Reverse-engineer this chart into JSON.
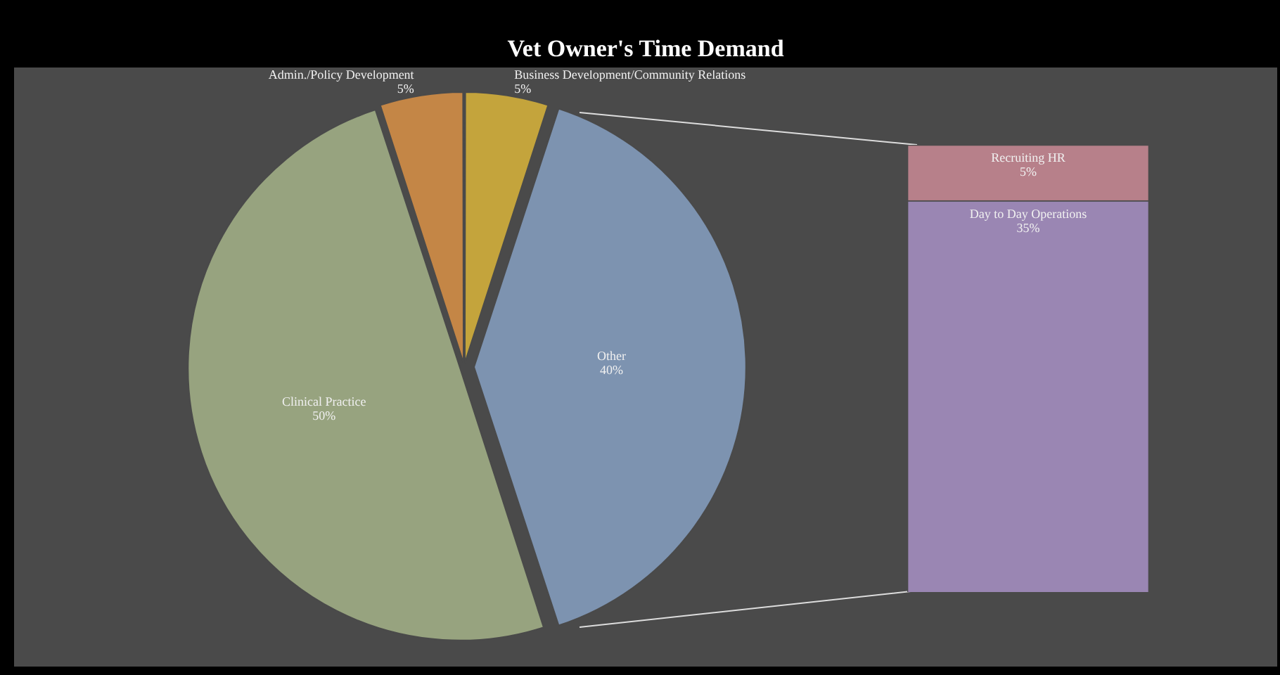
{
  "chart_data": [
    {
      "type": "pie",
      "title": "Vet Owner's Time Demand",
      "categories": [
        "Business Development/Community Relations",
        "Other",
        "Clinical Practice",
        "Admin./Policy Development"
      ],
      "values": [
        5,
        40,
        50,
        5
      ],
      "colors": [
        "#c4a43c",
        "#7d93b0",
        "#97a37f",
        "#c48646"
      ],
      "value_labels": [
        "5%",
        "40%",
        "50%",
        "5%"
      ],
      "legend": false
    },
    {
      "type": "bar",
      "stacked": true,
      "categories": [
        null
      ],
      "series": [
        {
          "name": "Day to Day Operations",
          "color": "#9a86b3",
          "values": [
            35
          ],
          "value_labels": [
            "35%"
          ]
        },
        {
          "name": "Recruiting HR",
          "color": "#b7808a",
          "values": [
            5
          ],
          "value_labels": [
            "5%"
          ]
        }
      ],
      "ylim": [
        0,
        40
      ],
      "tick_labels": false,
      "legend": false
    }
  ]
}
